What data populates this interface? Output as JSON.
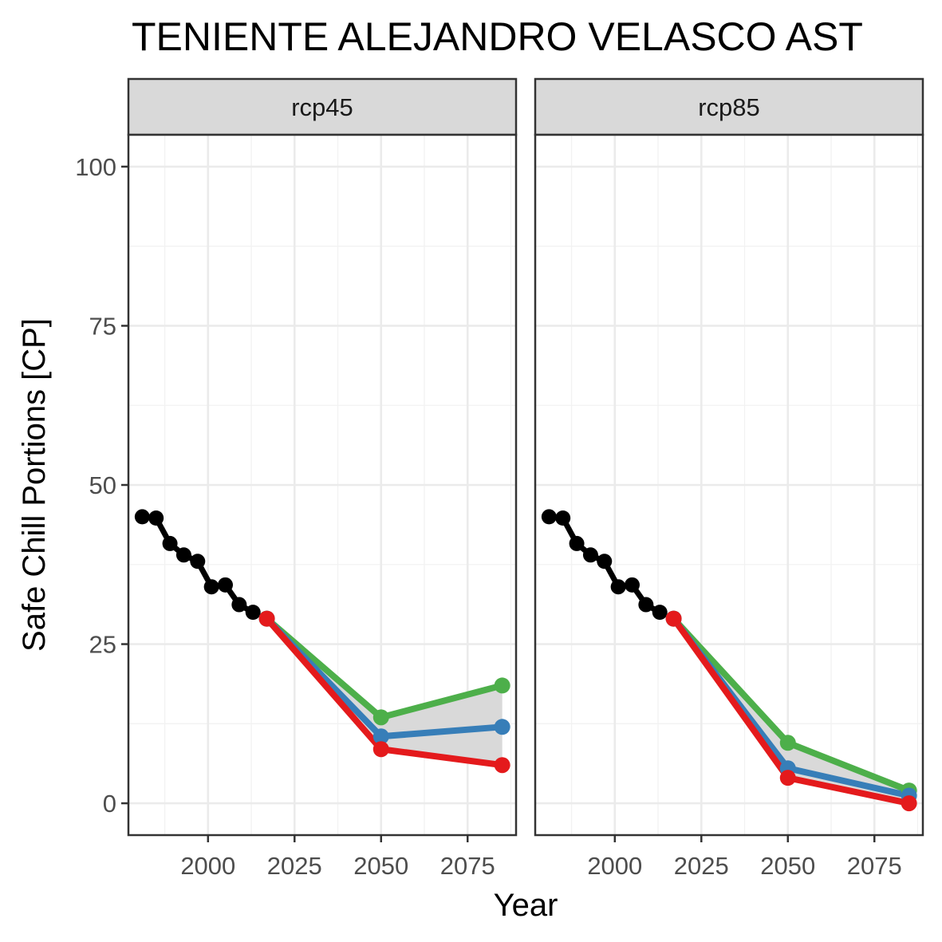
{
  "chart_data": {
    "type": "line",
    "title": "TENIENTE ALEJANDRO VELASCO AST",
    "xlabel": "Year",
    "ylabel": "Safe Chill Portions [CP]",
    "xlim": [
      1977,
      2089
    ],
    "ylim": [
      -5,
      105
    ],
    "xticks": [
      2000,
      2025,
      2050,
      2075
    ],
    "yticks": [
      0,
      25,
      50,
      75,
      100
    ],
    "grid": true,
    "legend": "none",
    "series_colors": {
      "historic": "#000000",
      "band": "#d9d9d9",
      "low": "#e41a1c",
      "mid": "#377eb8",
      "high": "#4daf4a"
    },
    "panels": [
      {
        "label": "rcp45",
        "historic": {
          "x": [
            1981,
            1985,
            1989,
            1993,
            1997,
            2001,
            2005,
            2009,
            2013
          ],
          "y": [
            45,
            44.8,
            40.8,
            39,
            38,
            34,
            34.3,
            31.2,
            30
          ]
        },
        "scenarios": {
          "x": [
            2017,
            2050,
            2085
          ],
          "low": [
            29,
            8.5,
            6
          ],
          "mid": [
            29,
            10.5,
            12
          ],
          "high": [
            29,
            13.5,
            18.5
          ]
        }
      },
      {
        "label": "rcp85",
        "historic": {
          "x": [
            1981,
            1985,
            1989,
            1993,
            1997,
            2001,
            2005,
            2009,
            2013
          ],
          "y": [
            45,
            44.8,
            40.8,
            39,
            38,
            34,
            34.3,
            31.2,
            30
          ]
        },
        "scenarios": {
          "x": [
            2017,
            2050,
            2085
          ],
          "low": [
            29,
            4,
            0
          ],
          "mid": [
            29,
            5.5,
            1.2
          ],
          "high": [
            29,
            9.5,
            2
          ]
        }
      }
    ]
  }
}
